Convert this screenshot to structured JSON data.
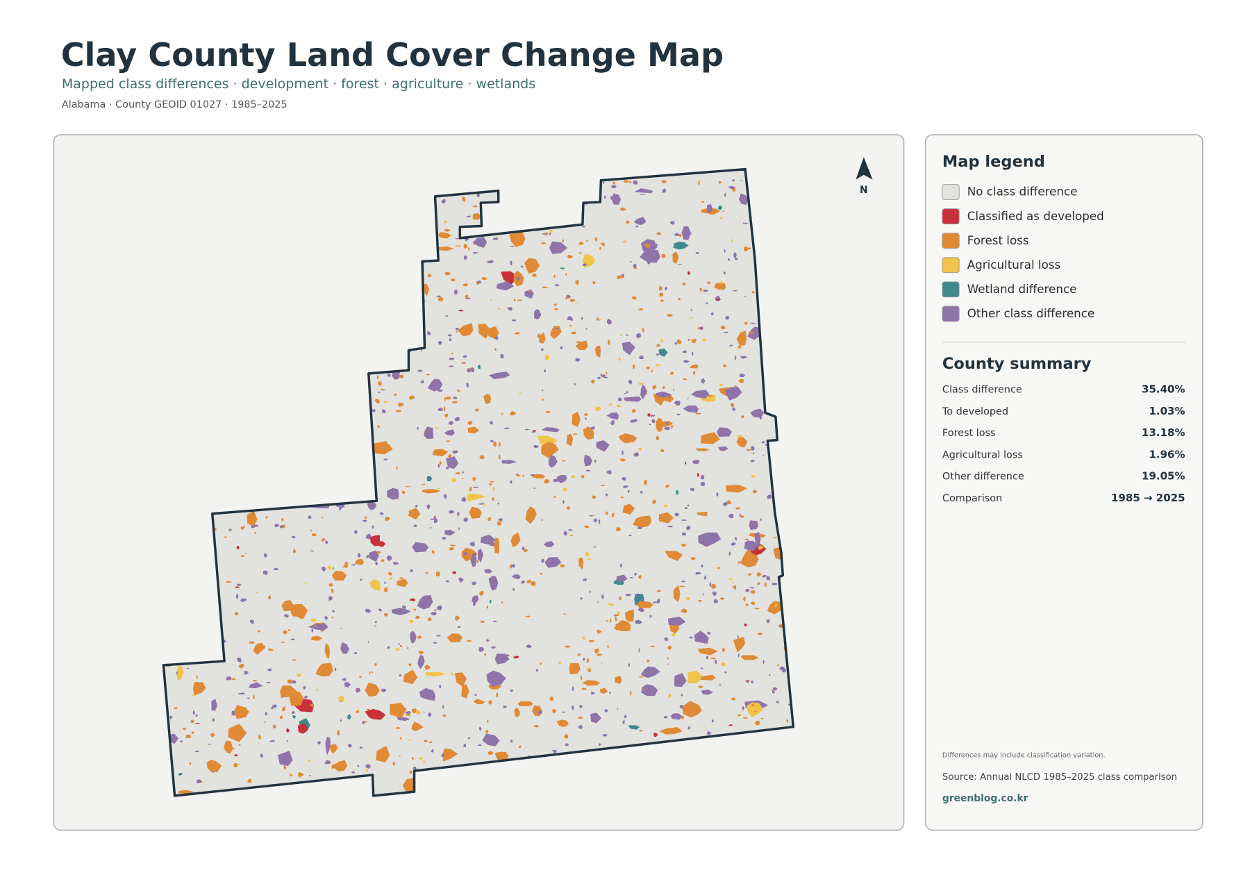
{
  "header": {
    "title": "Clay County Land Cover Change Map",
    "subtitle": "Mapped class differences · development · forest · agriculture · wetlands",
    "meta": "Alabama · County GEOID 01027 · 1985–2025"
  },
  "map": {
    "north_label": "N"
  },
  "legend": {
    "title": "Map legend",
    "items": [
      {
        "label": "No class difference",
        "color": "#e2e2df"
      },
      {
        "label": "Classified as developed",
        "color": "#c8303a"
      },
      {
        "label": "Forest loss",
        "color": "#e08a35"
      },
      {
        "label": "Agricultural loss",
        "color": "#f0c44a"
      },
      {
        "label": "Wetland difference",
        "color": "#3f8a8f"
      },
      {
        "label": "Other class difference",
        "color": "#8f74a9"
      }
    ]
  },
  "summary": {
    "title": "County summary",
    "rows": [
      {
        "label": "Class difference",
        "value": "35.40%"
      },
      {
        "label": "To developed",
        "value": "1.03%"
      },
      {
        "label": "Forest loss",
        "value": "13.18%"
      },
      {
        "label": "Agricultural loss",
        "value": "1.96%"
      },
      {
        "label": "Other difference",
        "value": "19.05%"
      },
      {
        "label": "Comparison",
        "value": "1985 → 2025"
      }
    ]
  },
  "footer": {
    "note": "Differences may include classification variation.",
    "source": "Source: Annual NLCD 1985–2025 class comparison",
    "site": "greenblog.co.kr"
  }
}
